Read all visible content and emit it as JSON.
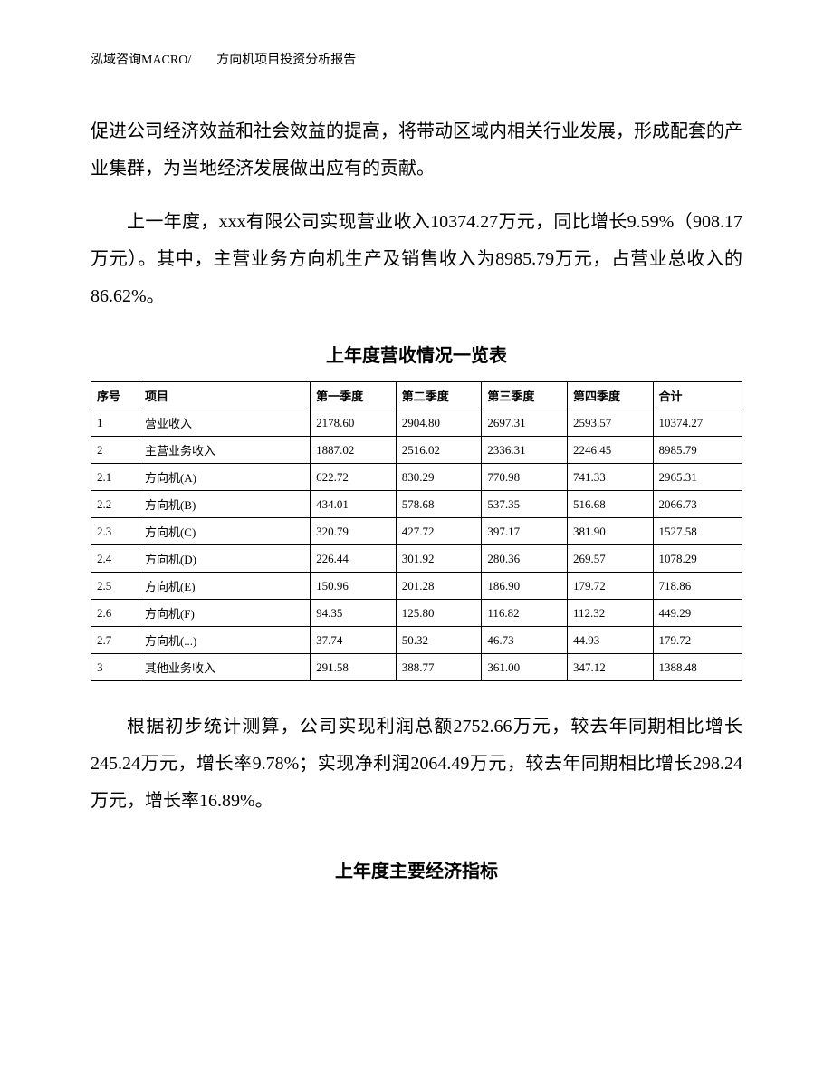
{
  "header": {
    "text": "泓域咨询MACRO/　　方向机项目投资分析报告"
  },
  "paragraphs": {
    "p1": "促进公司经济效益和社会效益的提高，将带动区域内相关行业发展，形成配套的产业集群，为当地经济发展做出应有的贡献。",
    "p2": "上一年度，xxx有限公司实现营业收入10374.27万元，同比增长9.59%（908.17万元）。其中，主营业务方向机生产及销售收入为8985.79万元，占营业总收入的86.62%。",
    "p3": "根据初步统计测算，公司实现利润总额2752.66万元，较去年同期相比增长245.24万元，增长率9.78%；实现净利润2064.49万元，较去年同期相比增长298.24万元，增长率16.89%。"
  },
  "table": {
    "title": "上年度营收情况一览表",
    "columns": [
      "序号",
      "项目",
      "第一季度",
      "第二季度",
      "第三季度",
      "第四季度",
      "合计"
    ],
    "rows": [
      [
        "1",
        "营业收入",
        "2178.60",
        "2904.80",
        "2697.31",
        "2593.57",
        "10374.27"
      ],
      [
        "2",
        "主营业务收入",
        "1887.02",
        "2516.02",
        "2336.31",
        "2246.45",
        "8985.79"
      ],
      [
        "2.1",
        "方向机(A)",
        "622.72",
        "830.29",
        "770.98",
        "741.33",
        "2965.31"
      ],
      [
        "2.2",
        "方向机(B)",
        "434.01",
        "578.68",
        "537.35",
        "516.68",
        "2066.73"
      ],
      [
        "2.3",
        "方向机(C)",
        "320.79",
        "427.72",
        "397.17",
        "381.90",
        "1527.58"
      ],
      [
        "2.4",
        "方向机(D)",
        "226.44",
        "301.92",
        "280.36",
        "269.57",
        "1078.29"
      ],
      [
        "2.5",
        "方向机(E)",
        "150.96",
        "201.28",
        "186.90",
        "179.72",
        "718.86"
      ],
      [
        "2.6",
        "方向机(F)",
        "94.35",
        "125.80",
        "116.82",
        "112.32",
        "449.29"
      ],
      [
        "2.7",
        "方向机(...)",
        "37.74",
        "50.32",
        "46.73",
        "44.93",
        "179.72"
      ],
      [
        "3",
        "其他业务收入",
        "291.58",
        "388.77",
        "361.00",
        "347.12",
        "1388.48"
      ]
    ]
  },
  "secondTitle": "上年度主要经济指标"
}
